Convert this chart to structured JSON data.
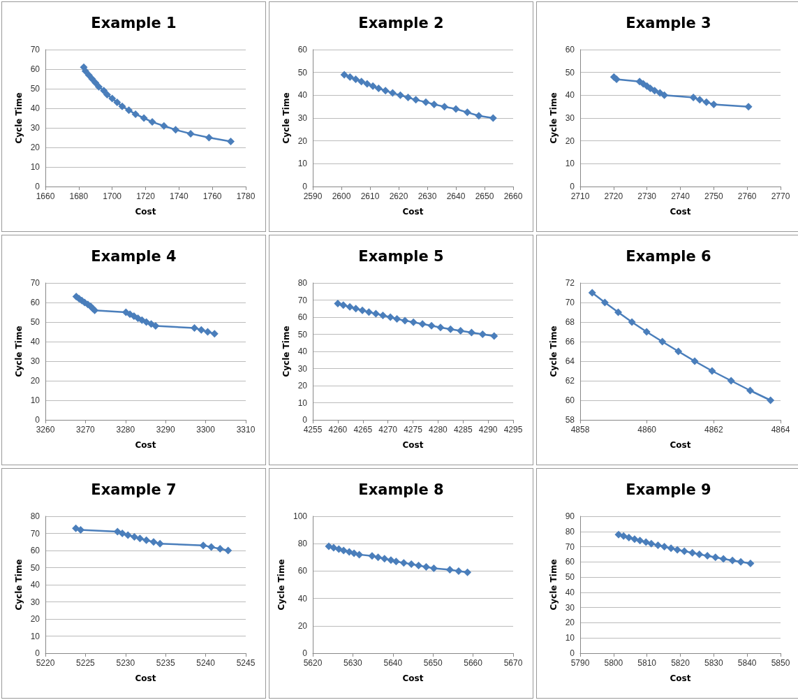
{
  "chart_data": [
    {
      "type": "line",
      "title": "Example 1",
      "xlabel": "Cost",
      "ylabel": "Cycle Time",
      "color": "#4a7ebb",
      "marker": "diamond",
      "grid": "y",
      "xlim": [
        1660,
        1780
      ],
      "xticks": [
        1660,
        1680,
        1700,
        1720,
        1740,
        1760,
        1780
      ],
      "ylim": [
        0,
        70
      ],
      "yticks": [
        0,
        10,
        20,
        30,
        40,
        50,
        60,
        70
      ],
      "x": [
        1683,
        1684,
        1686,
        1688,
        1690,
        1692,
        1695,
        1697,
        1700,
        1703,
        1706,
        1710,
        1714,
        1719,
        1724,
        1731,
        1738,
        1747,
        1758,
        1771
      ],
      "values": [
        61,
        59,
        57,
        55,
        53,
        51,
        49,
        47,
        45,
        43,
        41,
        39,
        37,
        35,
        33,
        31,
        29,
        27,
        25,
        23
      ]
    },
    {
      "type": "line",
      "title": "Example 2",
      "xlabel": "Cost",
      "ylabel": "Cycle Time",
      "color": "#4a7ebb",
      "marker": "diamond",
      "grid": "y",
      "xlim": [
        2590,
        2660
      ],
      "xticks": [
        2590,
        2600,
        2610,
        2620,
        2630,
        2640,
        2650,
        2660
      ],
      "ylim": [
        0,
        60
      ],
      "yticks": [
        0,
        10,
        20,
        30,
        40,
        50,
        60
      ],
      "x": [
        2601,
        2603,
        2605,
        2607,
        2609,
        2611,
        2613,
        2615.4,
        2617.9,
        2620.6,
        2623.3,
        2626,
        2629.5,
        2632.4,
        2636,
        2640,
        2644,
        2648,
        2653
      ],
      "values": [
        49,
        48,
        47,
        46,
        45,
        44,
        43,
        42,
        41,
        40,
        39,
        38,
        37,
        36,
        35,
        34,
        32.5,
        31,
        30
      ]
    },
    {
      "type": "line",
      "title": "Example 3",
      "xlabel": "Cost",
      "ylabel": "Cycle Time",
      "color": "#4a7ebb",
      "marker": "diamond",
      "grid": "y",
      "xlim": [
        2710,
        2770
      ],
      "xticks": [
        2710,
        2720,
        2730,
        2740,
        2750,
        2760,
        2770
      ],
      "ylim": [
        0,
        60
      ],
      "yticks": [
        0,
        10,
        20,
        30,
        40,
        50,
        60
      ],
      "x": [
        2720.1,
        2720.9,
        2727.8,
        2728.9,
        2730,
        2731,
        2732.3,
        2733.9,
        2735.2,
        2743.9,
        2745.8,
        2747.8,
        2750,
        2760.4
      ],
      "values": [
        48,
        47,
        46,
        45,
        44,
        43,
        42,
        41,
        40,
        39,
        38,
        37,
        36,
        35
      ]
    },
    {
      "type": "line",
      "title": "Example 4",
      "xlabel": "Cost",
      "ylabel": "Cycle Time",
      "color": "#4a7ebb",
      "marker": "diamond",
      "grid": "y",
      "xlim": [
        3260,
        3310
      ],
      "xticks": [
        3260,
        3270,
        3280,
        3290,
        3300,
        3310
      ],
      "ylim": [
        0,
        70
      ],
      "yticks": [
        0,
        10,
        20,
        30,
        40,
        50,
        60,
        70
      ],
      "x": [
        3267.7,
        3268.4,
        3269.1,
        3269.8,
        3270.6,
        3271.3,
        3271.8,
        3272.3,
        3280.1,
        3281.1,
        3282.1,
        3283.1,
        3284.1,
        3285.2,
        3286.4,
        3287.5,
        3297.2,
        3298.9,
        3300.5,
        3302.2
      ],
      "values": [
        63,
        62,
        61,
        60,
        59,
        58,
        57,
        56,
        55,
        54,
        53,
        52,
        51,
        50,
        49,
        48,
        47,
        46,
        45,
        44
      ]
    },
    {
      "type": "line",
      "title": "Example 5",
      "xlabel": "Cost",
      "ylabel": "Cycle Time",
      "color": "#4a7ebb",
      "marker": "diamond",
      "grid": "y",
      "xlim": [
        4255,
        4295
      ],
      "xticks": [
        4255,
        4260,
        4265,
        4270,
        4275,
        4280,
        4285,
        4290,
        4295
      ],
      "ylim": [
        0,
        80
      ],
      "yticks": [
        0,
        10,
        20,
        30,
        40,
        50,
        60,
        70,
        80
      ],
      "x": [
        4260,
        4261.1,
        4262.4,
        4263.6,
        4264.9,
        4266.2,
        4267.6,
        4269,
        4270.5,
        4271.8,
        4273.4,
        4275.1,
        4276.9,
        4278.7,
        4280.5,
        4282.5,
        4284.5,
        4286.7,
        4288.9,
        4291.2
      ],
      "values": [
        68,
        67,
        66,
        65,
        64,
        63,
        62,
        61,
        60,
        59,
        58,
        57,
        56,
        55,
        54,
        53,
        52,
        51,
        50,
        49
      ]
    },
    {
      "type": "line",
      "title": "Example 6",
      "xlabel": "Cost",
      "ylabel": "Cycle Time",
      "color": "#4a7ebb",
      "marker": "diamond",
      "grid": "y",
      "xlim": [
        4858,
        4864
      ],
      "xticks": [
        4858,
        4860,
        4862,
        4864
      ],
      "ylim": [
        58,
        72
      ],
      "yticks": [
        58,
        60,
        62,
        64,
        66,
        68,
        70,
        72
      ],
      "x": [
        4858.36,
        4858.74,
        4859.14,
        4859.55,
        4859.99,
        4860.46,
        4860.94,
        4861.43,
        4861.95,
        4862.52,
        4863.09,
        4863.7
      ],
      "values": [
        71,
        70,
        69,
        68,
        67,
        66,
        65,
        64,
        63,
        62,
        61,
        60
      ]
    },
    {
      "type": "line",
      "title": "Example 7",
      "xlabel": "Cost",
      "ylabel": "Cycle Time",
      "color": "#4a7ebb",
      "marker": "diamond",
      "grid": "y",
      "xlim": [
        5220,
        5245
      ],
      "xticks": [
        5220,
        5225,
        5230,
        5235,
        5240,
        5245
      ],
      "ylim": [
        0,
        80
      ],
      "yticks": [
        0,
        10,
        20,
        30,
        40,
        50,
        60,
        70,
        80
      ],
      "x": [
        5223.8,
        5224.4,
        5229,
        5229.6,
        5230.3,
        5231.1,
        5231.8,
        5232.6,
        5233.5,
        5234.3,
        5239.7,
        5240.7,
        5241.8,
        5242.8
      ],
      "values": [
        73,
        72,
        71,
        70,
        69,
        68,
        67,
        66,
        65,
        64,
        63,
        62,
        61,
        60
      ]
    },
    {
      "type": "line",
      "title": "Example 8",
      "xlabel": "Cost",
      "ylabel": "Cycle Time",
      "color": "#4a7ebb",
      "marker": "diamond",
      "grid": "y",
      "xlim": [
        5620,
        5670
      ],
      "xticks": [
        5620,
        5630,
        5640,
        5650,
        5660,
        5670
      ],
      "ylim": [
        0,
        100
      ],
      "yticks": [
        0,
        20,
        40,
        60,
        80,
        100
      ],
      "x": [
        5624,
        5625.2,
        5626.5,
        5627.7,
        5629.1,
        5630.3,
        5631.6,
        5634.8,
        5636.3,
        5637.9,
        5639.5,
        5640.8,
        5642.7,
        5644.6,
        5646.4,
        5648.3,
        5650.2,
        5654.2,
        5656.4,
        5658.6
      ],
      "values": [
        78,
        77,
        76,
        75,
        74,
        73,
        72,
        71,
        70,
        69,
        68,
        67,
        66,
        65,
        64,
        63,
        62,
        61,
        60,
        59
      ]
    },
    {
      "type": "line",
      "title": "Example 9",
      "xlabel": "Cost",
      "ylabel": "Cycle Time",
      "color": "#4a7ebb",
      "marker": "diamond",
      "grid": "y",
      "xlim": [
        5790,
        5850
      ],
      "xticks": [
        5790,
        5800,
        5810,
        5820,
        5830,
        5840,
        5850
      ],
      "ylim": [
        0,
        90
      ],
      "yticks": [
        0,
        10,
        20,
        30,
        40,
        50,
        60,
        70,
        80,
        90
      ],
      "x": [
        5801.5,
        5803,
        5804.6,
        5806.3,
        5807.9,
        5809.7,
        5811.3,
        5813.3,
        5815.2,
        5817.2,
        5819.1,
        5821.2,
        5823.6,
        5825.7,
        5828.1,
        5830.5,
        5832.9,
        5835.6,
        5838.1,
        5841
      ],
      "values": [
        78,
        77,
        76,
        75,
        74,
        73,
        72,
        71,
        70,
        69,
        68,
        67,
        66,
        65,
        64,
        63,
        62,
        61,
        60,
        59
      ]
    }
  ]
}
